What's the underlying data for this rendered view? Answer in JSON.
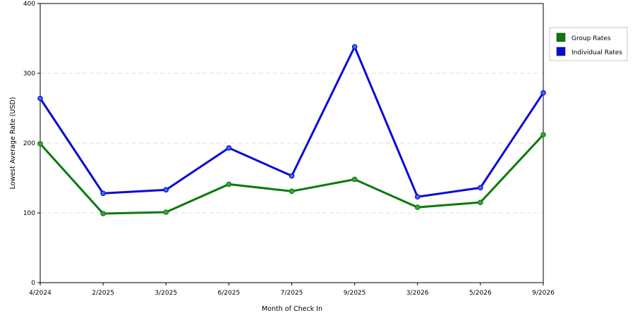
{
  "chart_data": {
    "type": "line",
    "title": "",
    "xlabel": "Month of Check In",
    "ylabel": "Lowest Average Rate (USD)",
    "categories": [
      "4/2024",
      "2/2025",
      "3/2025",
      "6/2025",
      "7/2025",
      "9/2025",
      "3/2026",
      "5/2026",
      "9/2026"
    ],
    "series": [
      {
        "name": "Group Rates",
        "color": "#0a7a0a",
        "marker_color": "#3aa53a",
        "values": [
          199,
          99,
          101,
          141,
          131,
          148,
          108,
          115,
          212
        ]
      },
      {
        "name": "Individual Rates",
        "color": "#0a0ad6",
        "marker_color": "#3a6ee8",
        "values": [
          264,
          128,
          133,
          193,
          153,
          338,
          123,
          136,
          272
        ]
      }
    ],
    "ylim": [
      0,
      400
    ],
    "yticks": [
      0,
      100,
      200,
      300,
      400
    ],
    "grid": true,
    "legend_position": "right"
  }
}
